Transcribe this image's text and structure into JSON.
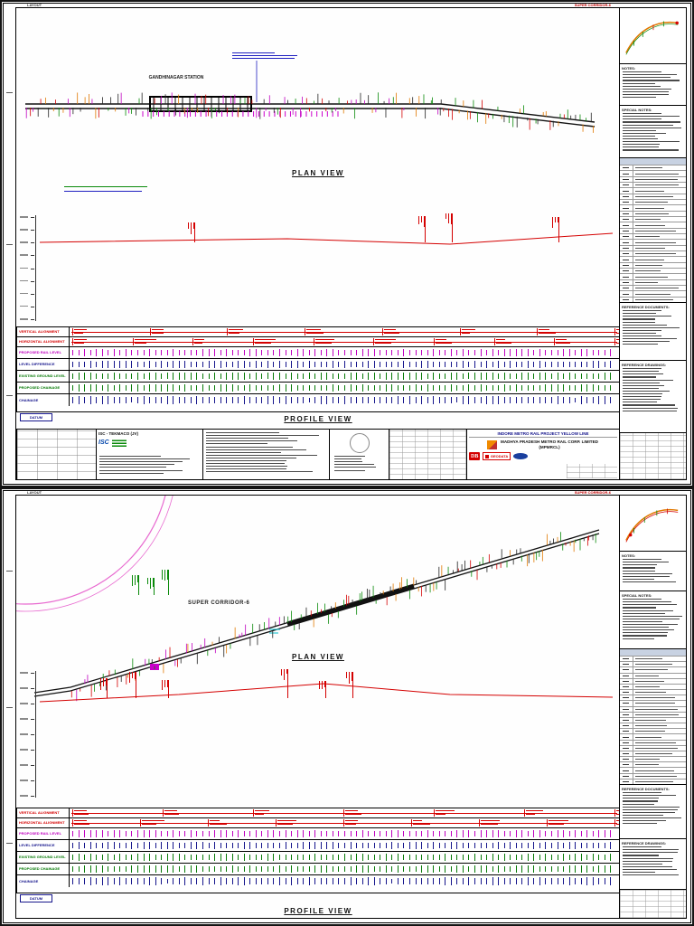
{
  "sheet1": {
    "layout_label": "LAYOUT",
    "corridor_tag": "SUPER CORRIDOR-6",
    "plan_view_label": "PLAN VIEW",
    "profile_view_label": "PROFILE VIEW",
    "station_label": "GANDHINAGAR STATION",
    "datum_label": "DATUM",
    "bands": [
      {
        "label": "VERTICAL ALIGNMENT",
        "color": "#d40000"
      },
      {
        "label": "HORIZONTAL ALIGNMENT",
        "color": "#d40000"
      },
      {
        "label": "PROPOSED RAIL LEVEL",
        "color": "#c000c0"
      },
      {
        "label": "LEVEL DIFFERENCE",
        "color": "#15158c"
      },
      {
        "label": "EXISTING GROUND LEVEL",
        "color": "#077a07"
      },
      {
        "label": "PROPOSED CHAINAGE",
        "color": "#077a07"
      },
      {
        "label": "CHAINAGE",
        "color": "#15158c"
      }
    ]
  },
  "sheet2": {
    "layout_label": "LAYOUT",
    "corridor_tag": "SUPER CORRIDOR-6",
    "plan_view_label": "PLAN VIEW",
    "profile_view_label": "PROFILE VIEW",
    "corridor_plan_label": "SUPER CORRIDOR-6",
    "datum_label": "DATUM",
    "bands": [
      {
        "label": "VERTICAL ALIGNMENT",
        "color": "#d40000"
      },
      {
        "label": "HORIZONTAL ALIGNMENT",
        "color": "#d40000"
      },
      {
        "label": "PROPOSED RAIL LEVEL",
        "color": "#c000c0"
      },
      {
        "label": "LEVEL DIFFERENCE",
        "color": "#15158c"
      },
      {
        "label": "EXISTING GROUND LEVEL",
        "color": "#077a07"
      },
      {
        "label": "PROPOSED CHAINAGE",
        "color": "#077a07"
      },
      {
        "label": "CHAINAGE",
        "color": "#15158c"
      }
    ]
  },
  "right_panel": {
    "notes_heading": "NOTES:",
    "special_notes_heading": "SPECIAL NOTES:",
    "reference_documents_heading": "REFERENCE DOCUMENTS:",
    "reference_drawings_heading": "REFERENCE DRAWINGS:"
  },
  "titleblock": {
    "consultant_name": "ISC - TEKMACO (JV)",
    "isc_logo_text": "ISC",
    "client_name": "MADHYA PRADESH METRO RAIL CORP. LIMITED (MPMRCL)",
    "project_title": "INDORE METRO RAIL PROJECT YELLOW LINE",
    "db_logo_text": "DB",
    "geodata_logo_text": "GEODATA"
  }
}
